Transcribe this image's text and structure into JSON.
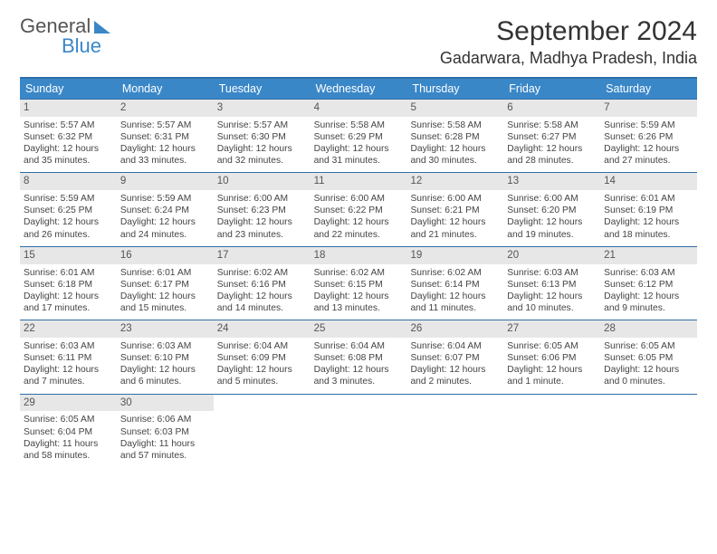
{
  "brand": {
    "word1": "General",
    "word2": "Blue"
  },
  "title": "September 2024",
  "location": "Gadarwara, Madhya Pradesh, India",
  "colors": {
    "header_bg": "#3a87c8",
    "rule": "#2f6fa8",
    "daynum_bg": "#e7e7e7",
    "text": "#444444"
  },
  "days_of_week": [
    "Sunday",
    "Monday",
    "Tuesday",
    "Wednesday",
    "Thursday",
    "Friday",
    "Saturday"
  ],
  "weeks": [
    [
      {
        "n": "1",
        "sr": "Sunrise: 5:57 AM",
        "ss": "Sunset: 6:32 PM",
        "d1": "Daylight: 12 hours",
        "d2": "and 35 minutes."
      },
      {
        "n": "2",
        "sr": "Sunrise: 5:57 AM",
        "ss": "Sunset: 6:31 PM",
        "d1": "Daylight: 12 hours",
        "d2": "and 33 minutes."
      },
      {
        "n": "3",
        "sr": "Sunrise: 5:57 AM",
        "ss": "Sunset: 6:30 PM",
        "d1": "Daylight: 12 hours",
        "d2": "and 32 minutes."
      },
      {
        "n": "4",
        "sr": "Sunrise: 5:58 AM",
        "ss": "Sunset: 6:29 PM",
        "d1": "Daylight: 12 hours",
        "d2": "and 31 minutes."
      },
      {
        "n": "5",
        "sr": "Sunrise: 5:58 AM",
        "ss": "Sunset: 6:28 PM",
        "d1": "Daylight: 12 hours",
        "d2": "and 30 minutes."
      },
      {
        "n": "6",
        "sr": "Sunrise: 5:58 AM",
        "ss": "Sunset: 6:27 PM",
        "d1": "Daylight: 12 hours",
        "d2": "and 28 minutes."
      },
      {
        "n": "7",
        "sr": "Sunrise: 5:59 AM",
        "ss": "Sunset: 6:26 PM",
        "d1": "Daylight: 12 hours",
        "d2": "and 27 minutes."
      }
    ],
    [
      {
        "n": "8",
        "sr": "Sunrise: 5:59 AM",
        "ss": "Sunset: 6:25 PM",
        "d1": "Daylight: 12 hours",
        "d2": "and 26 minutes."
      },
      {
        "n": "9",
        "sr": "Sunrise: 5:59 AM",
        "ss": "Sunset: 6:24 PM",
        "d1": "Daylight: 12 hours",
        "d2": "and 24 minutes."
      },
      {
        "n": "10",
        "sr": "Sunrise: 6:00 AM",
        "ss": "Sunset: 6:23 PM",
        "d1": "Daylight: 12 hours",
        "d2": "and 23 minutes."
      },
      {
        "n": "11",
        "sr": "Sunrise: 6:00 AM",
        "ss": "Sunset: 6:22 PM",
        "d1": "Daylight: 12 hours",
        "d2": "and 22 minutes."
      },
      {
        "n": "12",
        "sr": "Sunrise: 6:00 AM",
        "ss": "Sunset: 6:21 PM",
        "d1": "Daylight: 12 hours",
        "d2": "and 21 minutes."
      },
      {
        "n": "13",
        "sr": "Sunrise: 6:00 AM",
        "ss": "Sunset: 6:20 PM",
        "d1": "Daylight: 12 hours",
        "d2": "and 19 minutes."
      },
      {
        "n": "14",
        "sr": "Sunrise: 6:01 AM",
        "ss": "Sunset: 6:19 PM",
        "d1": "Daylight: 12 hours",
        "d2": "and 18 minutes."
      }
    ],
    [
      {
        "n": "15",
        "sr": "Sunrise: 6:01 AM",
        "ss": "Sunset: 6:18 PM",
        "d1": "Daylight: 12 hours",
        "d2": "and 17 minutes."
      },
      {
        "n": "16",
        "sr": "Sunrise: 6:01 AM",
        "ss": "Sunset: 6:17 PM",
        "d1": "Daylight: 12 hours",
        "d2": "and 15 minutes."
      },
      {
        "n": "17",
        "sr": "Sunrise: 6:02 AM",
        "ss": "Sunset: 6:16 PM",
        "d1": "Daylight: 12 hours",
        "d2": "and 14 minutes."
      },
      {
        "n": "18",
        "sr": "Sunrise: 6:02 AM",
        "ss": "Sunset: 6:15 PM",
        "d1": "Daylight: 12 hours",
        "d2": "and 13 minutes."
      },
      {
        "n": "19",
        "sr": "Sunrise: 6:02 AM",
        "ss": "Sunset: 6:14 PM",
        "d1": "Daylight: 12 hours",
        "d2": "and 11 minutes."
      },
      {
        "n": "20",
        "sr": "Sunrise: 6:03 AM",
        "ss": "Sunset: 6:13 PM",
        "d1": "Daylight: 12 hours",
        "d2": "and 10 minutes."
      },
      {
        "n": "21",
        "sr": "Sunrise: 6:03 AM",
        "ss": "Sunset: 6:12 PM",
        "d1": "Daylight: 12 hours",
        "d2": "and 9 minutes."
      }
    ],
    [
      {
        "n": "22",
        "sr": "Sunrise: 6:03 AM",
        "ss": "Sunset: 6:11 PM",
        "d1": "Daylight: 12 hours",
        "d2": "and 7 minutes."
      },
      {
        "n": "23",
        "sr": "Sunrise: 6:03 AM",
        "ss": "Sunset: 6:10 PM",
        "d1": "Daylight: 12 hours",
        "d2": "and 6 minutes."
      },
      {
        "n": "24",
        "sr": "Sunrise: 6:04 AM",
        "ss": "Sunset: 6:09 PM",
        "d1": "Daylight: 12 hours",
        "d2": "and 5 minutes."
      },
      {
        "n": "25",
        "sr": "Sunrise: 6:04 AM",
        "ss": "Sunset: 6:08 PM",
        "d1": "Daylight: 12 hours",
        "d2": "and 3 minutes."
      },
      {
        "n": "26",
        "sr": "Sunrise: 6:04 AM",
        "ss": "Sunset: 6:07 PM",
        "d1": "Daylight: 12 hours",
        "d2": "and 2 minutes."
      },
      {
        "n": "27",
        "sr": "Sunrise: 6:05 AM",
        "ss": "Sunset: 6:06 PM",
        "d1": "Daylight: 12 hours",
        "d2": "and 1 minute."
      },
      {
        "n": "28",
        "sr": "Sunrise: 6:05 AM",
        "ss": "Sunset: 6:05 PM",
        "d1": "Daylight: 12 hours",
        "d2": "and 0 minutes."
      }
    ],
    [
      {
        "n": "29",
        "sr": "Sunrise: 6:05 AM",
        "ss": "Sunset: 6:04 PM",
        "d1": "Daylight: 11 hours",
        "d2": "and 58 minutes."
      },
      {
        "n": "30",
        "sr": "Sunrise: 6:06 AM",
        "ss": "Sunset: 6:03 PM",
        "d1": "Daylight: 11 hours",
        "d2": "and 57 minutes."
      },
      null,
      null,
      null,
      null,
      null
    ]
  ]
}
